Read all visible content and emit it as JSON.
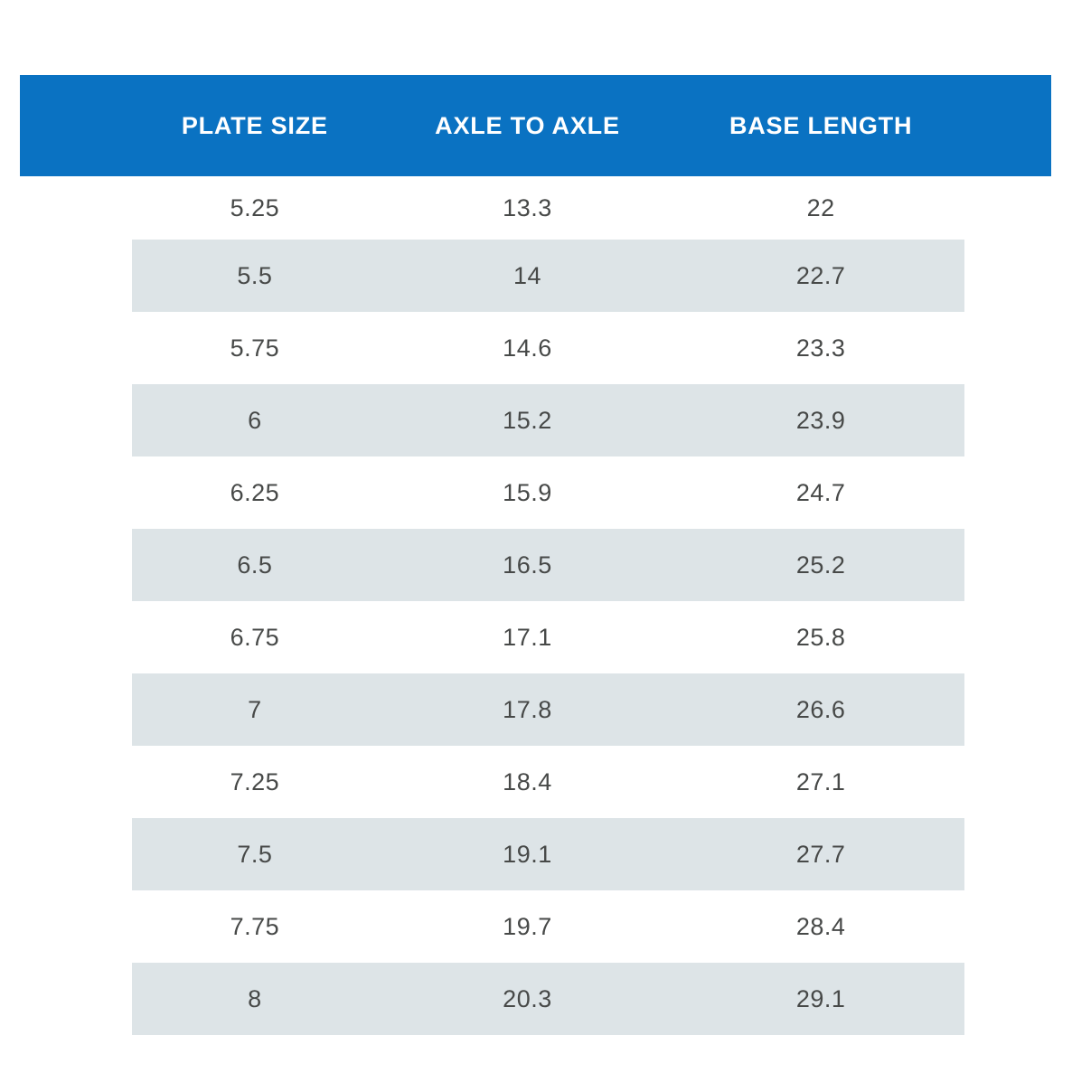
{
  "colors": {
    "header_bg": "#0a72c2",
    "header_text": "#ffffff",
    "alt_row_bg": "#dde4e7",
    "body_text": "#474948",
    "page_bg": "#ffffff"
  },
  "chart_data": {
    "type": "table",
    "columns": [
      "PLATE SIZE",
      "AXLE TO AXLE",
      "BASE LENGTH"
    ],
    "rows": [
      [
        5.25,
        13.3,
        22
      ],
      [
        5.5,
        14,
        22.7
      ],
      [
        5.75,
        14.6,
        23.3
      ],
      [
        6,
        15.2,
        23.9
      ],
      [
        6.25,
        15.9,
        24.7
      ],
      [
        6.5,
        16.5,
        25.2
      ],
      [
        6.75,
        17.1,
        25.8
      ],
      [
        7,
        17.8,
        26.6
      ],
      [
        7.25,
        18.4,
        27.1
      ],
      [
        7.5,
        19.1,
        27.7
      ],
      [
        7.75,
        19.7,
        28.4
      ],
      [
        8,
        20.3,
        29.1
      ]
    ],
    "layout": {
      "striped": true,
      "stripe_start_row": 2,
      "header_style": "solid-blue-band"
    }
  }
}
